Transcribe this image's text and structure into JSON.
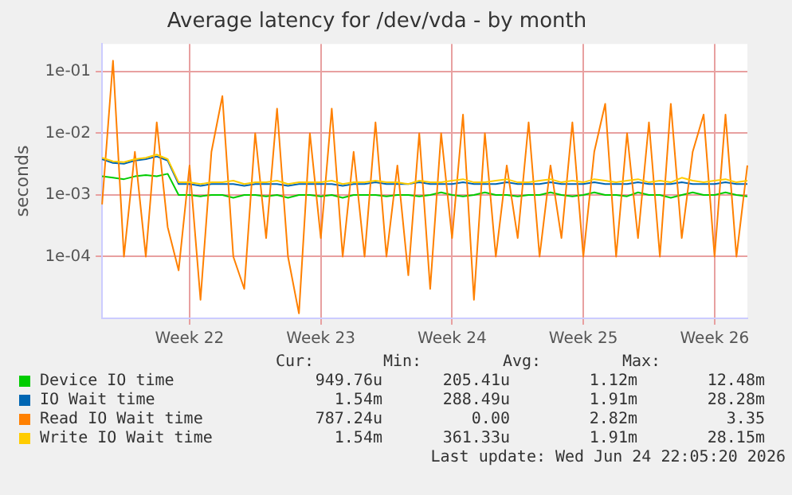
{
  "chart_data": {
    "type": "line",
    "title": "Average latency for /dev/vda - by month",
    "ylabel": "seconds",
    "log": "y",
    "grid": true,
    "legend": "bottom",
    "marker": "none",
    "line_style": "solid",
    "categories": [
      null,
      null,
      null,
      null,
      null,
      null,
      null,
      null,
      "Week 22",
      null,
      null,
      null,
      null,
      null,
      null,
      null,
      null,
      null,
      null,
      null,
      "Week 23",
      null,
      null,
      null,
      null,
      null,
      null,
      null,
      null,
      null,
      null,
      null,
      "Week 24",
      null,
      null,
      null,
      null,
      null,
      null,
      null,
      null,
      null,
      null,
      null,
      "Week 25",
      null,
      null,
      null,
      null,
      null,
      null,
      null,
      null,
      null,
      null,
      null,
      "Week 26",
      null,
      null,
      null
    ],
    "ylim": [
      1e-05,
      0.28
    ],
    "yticks": [
      {
        "value": 0.0001,
        "label": "1e-04"
      },
      {
        "value": 0.001,
        "label": "1e-03"
      },
      {
        "value": 0.01,
        "label": "1e-02"
      },
      {
        "value": 0.1,
        "label": "1e-01"
      }
    ],
    "series": [
      {
        "name": "Device IO time",
        "color": "#00cc00",
        "values": [
          0.002,
          0.0019,
          0.0018,
          0.002,
          0.0021,
          0.002,
          0.0022,
          0.001,
          0.001,
          0.00095,
          0.001,
          0.001,
          0.0009,
          0.001,
          0.001,
          0.00095,
          0.001,
          0.0009,
          0.001,
          0.001,
          0.00095,
          0.001,
          0.0009,
          0.001,
          0.001,
          0.001,
          0.00095,
          0.001,
          0.001,
          0.00095,
          0.001,
          0.0011,
          0.001,
          0.00095,
          0.001,
          0.0011,
          0.001,
          0.001,
          0.00095,
          0.001,
          0.001,
          0.0011,
          0.001,
          0.00095,
          0.001,
          0.0011,
          0.001,
          0.001,
          0.00095,
          0.0011,
          0.001,
          0.001,
          0.0009,
          0.001,
          0.0011,
          0.001,
          0.001,
          0.0011,
          0.001,
          0.00095
        ]
      },
      {
        "name": "IO Wait time",
        "color": "#0066b3",
        "values": [
          0.0038,
          0.0033,
          0.0032,
          0.0036,
          0.0038,
          0.0042,
          0.0036,
          0.0015,
          0.0015,
          0.0014,
          0.0015,
          0.0015,
          0.0015,
          0.0014,
          0.0015,
          0.0015,
          0.0015,
          0.0014,
          0.0015,
          0.0015,
          0.0015,
          0.0015,
          0.0014,
          0.0015,
          0.0015,
          0.0016,
          0.0015,
          0.0015,
          0.0015,
          0.0016,
          0.0015,
          0.0015,
          0.0015,
          0.0016,
          0.0015,
          0.0015,
          0.0015,
          0.0016,
          0.0015,
          0.0015,
          0.0015,
          0.0016,
          0.0015,
          0.0015,
          0.0015,
          0.0016,
          0.0015,
          0.0015,
          0.0015,
          0.0016,
          0.0015,
          0.0015,
          0.0015,
          0.0016,
          0.0015,
          0.0015,
          0.0015,
          0.0016,
          0.0015,
          0.0015
        ]
      },
      {
        "name": "Read IO Wait time",
        "color": "#ff8000",
        "values": [
          0.0007,
          0.15,
          0.0001,
          0.005,
          0.0001,
          0.015,
          0.0003,
          6e-05,
          0.003,
          2e-05,
          0.005,
          0.04,
          0.0001,
          3e-05,
          0.01,
          0.0002,
          0.025,
          0.0001,
          1.2e-05,
          0.01,
          0.0002,
          0.025,
          0.0001,
          0.005,
          0.0001,
          0.015,
          0.0001,
          0.003,
          5e-05,
          0.01,
          3e-05,
          0.01,
          0.0002,
          0.02,
          2e-05,
          0.01,
          0.0001,
          0.003,
          0.0002,
          0.015,
          0.0001,
          0.003,
          0.0002,
          0.015,
          0.0001,
          0.005,
          0.03,
          0.0001,
          0.01,
          0.0002,
          0.015,
          0.0001,
          0.03,
          0.0002,
          0.005,
          0.02,
          0.0001,
          0.02,
          0.0001,
          0.003
        ]
      },
      {
        "name": "Write IO Wait time",
        "color": "#ffcc00",
        "values": [
          0.004,
          0.0035,
          0.0034,
          0.0038,
          0.004,
          0.0045,
          0.0038,
          0.0016,
          0.0016,
          0.0015,
          0.0016,
          0.0016,
          0.0017,
          0.0015,
          0.0016,
          0.0016,
          0.0017,
          0.0015,
          0.0016,
          0.0016,
          0.0016,
          0.0017,
          0.0015,
          0.0016,
          0.0016,
          0.0017,
          0.0016,
          0.0016,
          0.0015,
          0.0017,
          0.0016,
          0.0016,
          0.0017,
          0.0018,
          0.0016,
          0.0016,
          0.0017,
          0.0018,
          0.0016,
          0.0016,
          0.0017,
          0.0018,
          0.0016,
          0.0017,
          0.0016,
          0.0018,
          0.0017,
          0.0016,
          0.0017,
          0.0018,
          0.0016,
          0.0017,
          0.0016,
          0.0019,
          0.0017,
          0.0016,
          0.0017,
          0.0018,
          0.0016,
          0.0017
        ]
      }
    ],
    "annotations": [
      "Cur:",
      "Min:",
      "Avg:",
      "Max:",
      "949.76u",
      "205.41u",
      "1.12m",
      "12.48m",
      "1.54m",
      "288.49u",
      "1.91m",
      "28.28m",
      "787.24u",
      "0.00",
      "2.82m",
      "3.35",
      "1.54m",
      "361.33u",
      "1.91m",
      "28.15m",
      "Last update: Wed Jun 24 22:05:20 2026"
    ]
  }
}
